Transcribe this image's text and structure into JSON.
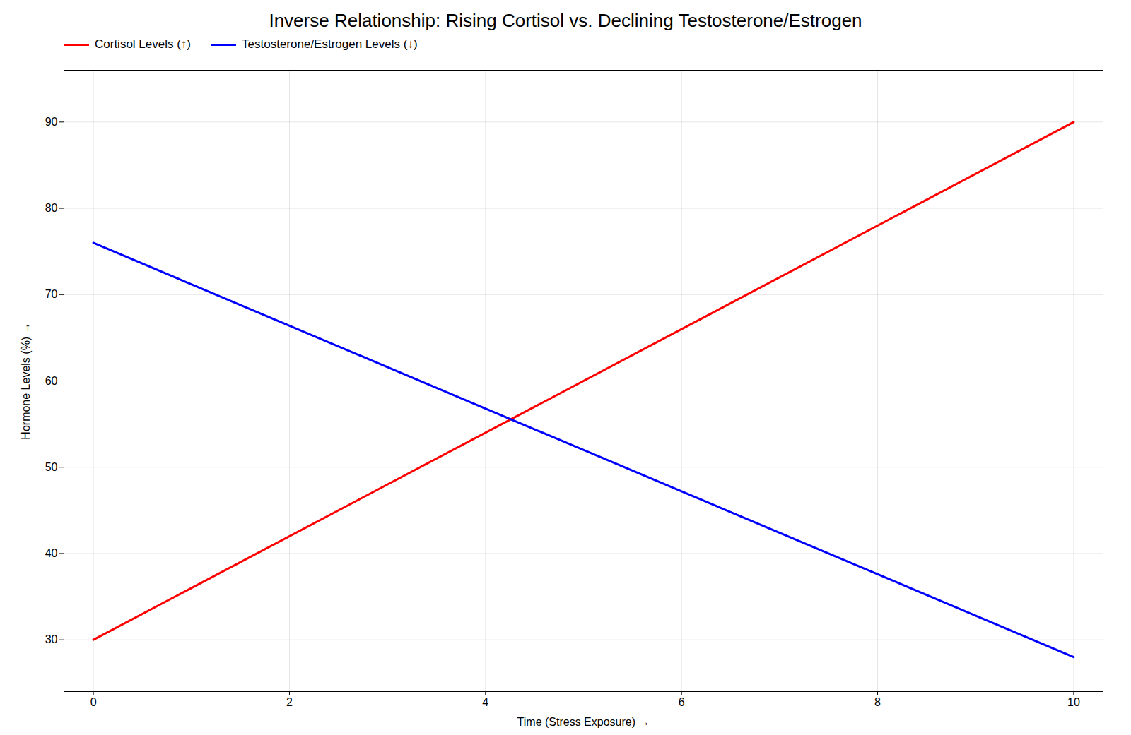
{
  "chart_data": {
    "type": "line",
    "title": "Inverse Relationship: Rising Cortisol vs. Declining Testosterone/Estrogen",
    "xlabel": "Time (Stress Exposure)",
    "ylabel": "Hormone Levels (%)",
    "x": [
      0,
      10
    ],
    "series": [
      {
        "name": "Cortisol Levels (↑)",
        "color": "red",
        "values": [
          30,
          90
        ]
      },
      {
        "name": "Testosterone/Estrogen Levels (↓)",
        "color": "blue",
        "values": [
          76,
          28
        ]
      }
    ],
    "xlim": [
      -0.3,
      10.3
    ],
    "ylim": [
      24,
      96
    ],
    "xticks": [
      0,
      2,
      4,
      6,
      8,
      10
    ],
    "yticks": [
      30,
      40,
      50,
      60,
      70,
      80,
      90
    ],
    "grid": true,
    "legend": "upper left"
  }
}
